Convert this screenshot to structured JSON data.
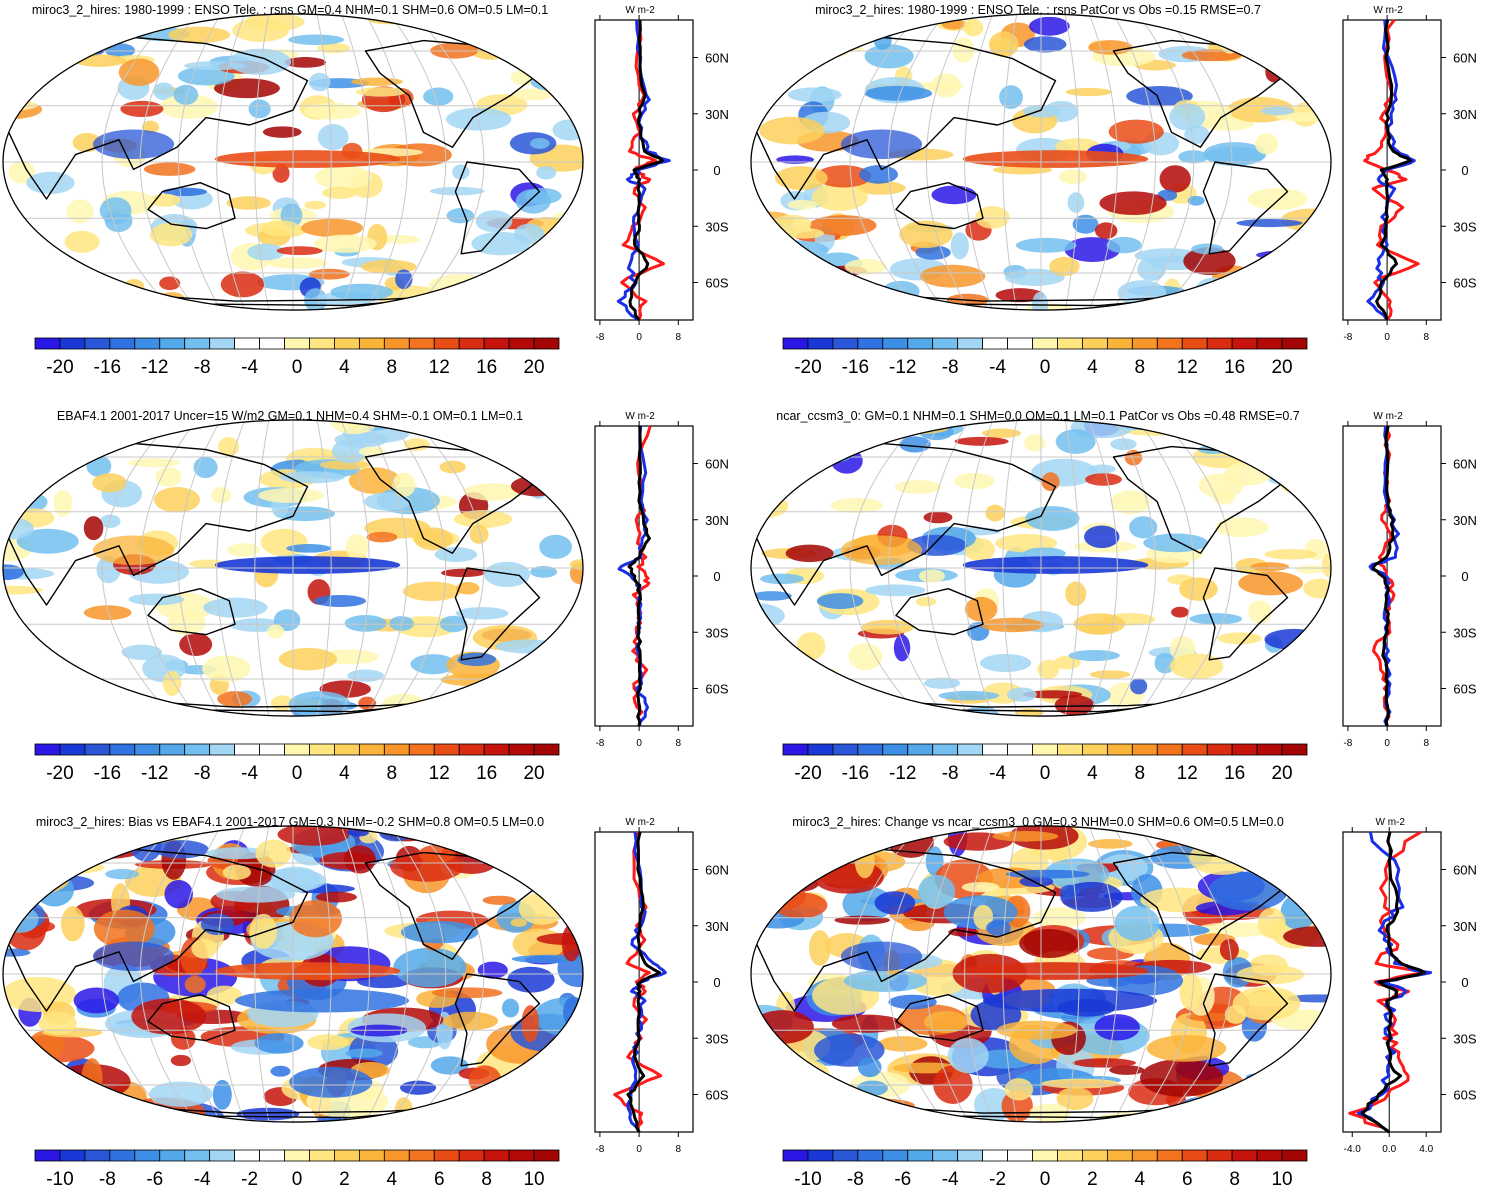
{
  "colors": {
    "diverging_21": [
      "#2a17e6",
      "#1a38d6",
      "#2a57d8",
      "#2f72e0",
      "#3d8fe6",
      "#53a8ea",
      "#73bff0",
      "#a2d6f4",
      "#ffffff",
      "#ffffff",
      "#fff7b0",
      "#ffe680",
      "#fdd05c",
      "#fbb43a",
      "#f8962a",
      "#f2721e",
      "#ea4c16",
      "#d92c10",
      "#c6130c",
      "#b50808",
      "#a30404"
    ],
    "profile_red": "#ff1a1a",
    "profile_blue": "#1a2ee6",
    "profile_black": "#000000",
    "graticule": "#c8c8c8"
  },
  "chart_data": [
    {
      "type": "heatmap",
      "title": "miroc3_2_hires: 1980-1999 : ENSO Tele. : rsns GM=0.4 NHM=0.1 SHM=0.6 OM=0.5 LM=0.1",
      "projection": "Robinson, centered 150E",
      "colorbar_ticks": [
        "-20",
        "-16",
        "-12",
        "-8",
        "-4",
        "0",
        "4",
        "8",
        "12",
        "16",
        "20"
      ],
      "lat_labels": [
        "60N",
        "30N",
        "0",
        "30S",
        "60S"
      ],
      "profile_xticks": [
        "-8",
        "0",
        "8"
      ],
      "profile_unit": "W m-2",
      "profile_xlim": [
        -9,
        11
      ],
      "profile_series": [
        {
          "name": "model",
          "color": "red",
          "lat": [
            80,
            60,
            40,
            30,
            20,
            10,
            5,
            0,
            -5,
            -10,
            -20,
            -30,
            -40,
            -50,
            -60,
            -70,
            -80
          ],
          "values": [
            0.5,
            -0.8,
            1,
            -0.8,
            0,
            -2,
            3,
            -1,
            2,
            -1,
            1,
            -1,
            -3,
            5,
            -4,
            1,
            0
          ]
        },
        {
          "name": "obs",
          "color": "blue",
          "lat": [
            80,
            60,
            40,
            30,
            20,
            10,
            5,
            0,
            -5,
            -10,
            -20,
            -30,
            -40,
            -50,
            -60,
            -70,
            -80
          ],
          "values": [
            -1,
            0,
            2,
            1,
            0,
            2,
            6,
            0,
            -2,
            1,
            0,
            -1,
            0,
            -2,
            -1,
            -4,
            0
          ]
        },
        {
          "name": "mean",
          "color": "black",
          "lat": [
            80,
            60,
            40,
            30,
            20,
            10,
            5,
            0,
            -5,
            -10,
            -20,
            -30,
            -40,
            -50,
            -60,
            -70,
            -80
          ],
          "values": [
            0,
            0,
            1,
            0,
            0,
            1,
            5,
            -1,
            0,
            0,
            0,
            0,
            -1,
            2,
            -1,
            -2,
            0
          ]
        }
      ]
    },
    {
      "type": "heatmap",
      "title": "miroc3_2_hires: 1980-1999 : ENSO Tele. : rsns PatCor vs Obs =0.15 RMSE=0.7",
      "projection": "Robinson, centered 150E",
      "colorbar_ticks": [
        "-20",
        "-16",
        "-12",
        "-8",
        "-4",
        "0",
        "4",
        "8",
        "12",
        "16",
        "20"
      ],
      "lat_labels": [
        "60N",
        "30N",
        "0",
        "30S",
        "60S"
      ],
      "profile_xticks": [
        "-8",
        "0",
        "8"
      ],
      "profile_unit": "W m-2",
      "profile_xlim": [
        -9,
        11
      ],
      "profile_series": [
        {
          "name": "model",
          "color": "red",
          "lat": [
            80,
            60,
            40,
            30,
            20,
            10,
            5,
            0,
            -5,
            -10,
            -20,
            -30,
            -40,
            -50,
            -60,
            -70,
            -80
          ],
          "values": [
            1,
            -1,
            1,
            -1,
            0,
            -2,
            -5,
            0,
            4,
            -3,
            3,
            -1,
            -2,
            6,
            -3,
            1,
            0
          ]
        },
        {
          "name": "obs",
          "color": "blue",
          "lat": [
            80,
            60,
            40,
            30,
            20,
            10,
            5,
            0,
            -5,
            -10,
            -20,
            -30,
            -40,
            -50,
            -60,
            -70,
            -80
          ],
          "values": [
            -1,
            0,
            2,
            1,
            0,
            2,
            6,
            0,
            -2,
            1,
            0,
            -1,
            0,
            -2,
            -1,
            -4,
            0
          ]
        },
        {
          "name": "mean",
          "color": "black",
          "lat": [
            80,
            60,
            40,
            30,
            20,
            10,
            5,
            0,
            -5,
            -10,
            -20,
            -30,
            -40,
            -50,
            -60,
            -70,
            -80
          ],
          "values": [
            0,
            0,
            1,
            0,
            0,
            1,
            5,
            -1,
            0,
            0,
            0,
            0,
            -1,
            2,
            -1,
            -2,
            0
          ]
        }
      ]
    },
    {
      "type": "heatmap",
      "title": "EBAF4.1 2001-2017 Uncer=15 W/m2 GM=0.1 NHM=0.4 SHM=-0.1 OM=0.1 LM=0.1",
      "projection": "Robinson, centered 150E",
      "colorbar_ticks": [
        "-20",
        "-16",
        "-12",
        "-8",
        "-4",
        "0",
        "4",
        "8",
        "12",
        "16",
        "20"
      ],
      "lat_labels": [
        "60N",
        "30N",
        "0",
        "30S",
        "60S"
      ],
      "profile_xticks": [
        "-8",
        "0",
        "8"
      ],
      "profile_unit": "W m-2",
      "profile_xlim": [
        -9,
        11
      ],
      "profile_series": [
        {
          "name": "model",
          "color": "red",
          "lat": [
            80,
            60,
            40,
            30,
            20,
            10,
            5,
            0,
            -5,
            -10,
            -20,
            -30,
            -40,
            -50,
            -60,
            -70,
            -80
          ],
          "values": [
            2,
            0,
            1,
            0,
            0,
            1,
            0,
            1,
            2,
            -1,
            0,
            0,
            -1,
            1,
            -1,
            0,
            0
          ]
        },
        {
          "name": "obs",
          "color": "blue",
          "lat": [
            80,
            60,
            40,
            30,
            20,
            10,
            5,
            0,
            -5,
            -10,
            -20,
            -30,
            -40,
            -50,
            -60,
            -70,
            -80
          ],
          "values": [
            0,
            1,
            0,
            2,
            1,
            0,
            -4,
            -2,
            0,
            0,
            0,
            0,
            0,
            0,
            0,
            2,
            0
          ]
        },
        {
          "name": "mean",
          "color": "black",
          "lat": [
            80,
            60,
            40,
            30,
            20,
            10,
            5,
            0,
            -5,
            -10,
            -20,
            -30,
            -40,
            -50,
            -60,
            -70,
            -80
          ],
          "values": [
            0,
            0,
            0,
            1,
            2,
            0,
            -2,
            -1,
            0,
            0,
            0,
            0,
            0,
            0,
            0,
            0,
            0
          ]
        }
      ]
    },
    {
      "type": "heatmap",
      "title": "ncar_ccsm3_0: GM=0.1 NHM=0.1 SHM=0.0 OM=0.1 LM=0.1 PatCor vs Obs =0.48 RMSE=0.7",
      "projection": "Robinson, centered 150E",
      "colorbar_ticks": [
        "-20",
        "-16",
        "-12",
        "-8",
        "-4",
        "0",
        "4",
        "8",
        "12",
        "16",
        "20"
      ],
      "lat_labels": [
        "60N",
        "30N",
        "0",
        "30S",
        "60S"
      ],
      "profile_xticks": [
        "-8",
        "0",
        "8"
      ],
      "profile_unit": "W m-2",
      "profile_xlim": [
        -9,
        11
      ],
      "profile_series": [
        {
          "name": "model",
          "color": "red",
          "lat": [
            80,
            60,
            40,
            30,
            20,
            10,
            5,
            0,
            -5,
            -10,
            -20,
            -30,
            -40,
            -50,
            -60,
            -70,
            -80
          ],
          "values": [
            0,
            0,
            0,
            -1,
            1,
            -2,
            -1,
            0,
            1,
            1,
            0,
            0,
            -3,
            -1,
            0,
            0,
            0
          ]
        },
        {
          "name": "obs",
          "color": "blue",
          "lat": [
            80,
            60,
            40,
            30,
            20,
            10,
            5,
            0,
            -5,
            -10,
            -20,
            -30,
            -40,
            -50,
            -60,
            -70,
            -80
          ],
          "values": [
            0,
            0,
            0,
            1,
            2,
            2,
            -4,
            0,
            0,
            0,
            0,
            0,
            0,
            0,
            0,
            0,
            0
          ]
        },
        {
          "name": "mean",
          "color": "black",
          "lat": [
            80,
            60,
            40,
            30,
            20,
            10,
            5,
            0,
            -5,
            -10,
            -20,
            -30,
            -40,
            -50,
            -60,
            -70,
            -80
          ],
          "values": [
            0,
            0,
            0,
            1,
            1,
            0,
            -3,
            -1,
            0,
            0,
            0,
            0,
            -1,
            0,
            0,
            0,
            0
          ]
        }
      ]
    },
    {
      "type": "heatmap",
      "title": "miroc3_2_hires: Bias vs EBAF4.1 2001-2017 GM=0.3 NHM=-0.2 SHM=0.8 OM=0.5 LM=0.0",
      "projection": "Robinson, centered 150E",
      "colorbar_ticks": [
        "-10",
        "-8",
        "-6",
        "-4",
        "-2",
        "0",
        "2",
        "4",
        "6",
        "8",
        "10"
      ],
      "lat_labels": [
        "60N",
        "30N",
        "0",
        "30S",
        "60S"
      ],
      "profile_xticks": [
        "-8",
        "0",
        "8"
      ],
      "profile_unit": "W m-2",
      "profile_xlim": [
        -9,
        11
      ],
      "profile_series": [
        {
          "name": "model",
          "color": "red",
          "lat": [
            80,
            60,
            40,
            30,
            20,
            10,
            5,
            0,
            -5,
            -10,
            -20,
            -30,
            -40,
            -50,
            -60,
            -70,
            -80
          ],
          "values": [
            0,
            -1,
            1,
            0,
            1,
            -3,
            2,
            0,
            1,
            -1,
            1,
            0,
            -2,
            4,
            -5,
            0,
            0
          ]
        },
        {
          "name": "obs",
          "color": "blue",
          "lat": [
            80,
            60,
            40,
            30,
            20,
            10,
            5,
            0,
            -5,
            -10,
            -20,
            -30,
            -40,
            -50,
            -60,
            -70,
            -80
          ],
          "values": [
            -1,
            0,
            1,
            0,
            -1,
            3,
            5,
            0,
            -1,
            1,
            0,
            0,
            -1,
            -1,
            -2,
            -2,
            0
          ]
        },
        {
          "name": "mean",
          "color": "black",
          "lat": [
            80,
            60,
            40,
            30,
            20,
            10,
            5,
            0,
            -5,
            -10,
            -20,
            -30,
            -40,
            -50,
            -60,
            -70,
            -80
          ],
          "values": [
            0,
            0,
            1,
            0,
            0,
            1,
            4,
            0,
            0,
            0,
            0,
            0,
            -1,
            1,
            -2,
            -1,
            0
          ]
        }
      ]
    },
    {
      "type": "heatmap",
      "title": "miroc3_2_hires: Change vs ncar_ccsm3_0 GM=0.3 NHM=0.0 SHM=0.6 OM=0.5 LM=0.0",
      "projection": "Robinson, centered 150E",
      "colorbar_ticks": [
        "-10",
        "-8",
        "-6",
        "-4",
        "-2",
        "0",
        "2",
        "4",
        "6",
        "8",
        "10"
      ],
      "lat_labels": [
        "60N",
        "30N",
        "0",
        "30S",
        "60S"
      ],
      "profile_xticks": [
        "-4.0",
        "0.0",
        "4.0"
      ],
      "profile_unit": "W m-2",
      "profile_xlim": [
        -5,
        5.6
      ],
      "profile_series": [
        {
          "name": "model",
          "color": "red",
          "lat": [
            80,
            60,
            40,
            30,
            20,
            10,
            5,
            0,
            -5,
            -10,
            -20,
            -30,
            -40,
            -50,
            -60,
            -70,
            -80
          ],
          "values": [
            3,
            -1,
            0,
            -1,
            1,
            -2,
            4,
            -2,
            2,
            -1,
            1,
            0,
            1,
            2,
            0,
            -4,
            0
          ]
        },
        {
          "name": "obs",
          "color": "blue",
          "lat": [
            80,
            60,
            40,
            30,
            20,
            10,
            5,
            0,
            -5,
            -10,
            -20,
            -30,
            -40,
            -50,
            -60,
            -70,
            -80
          ],
          "values": [
            -2,
            1,
            1,
            -1,
            0,
            1,
            4,
            -1,
            2,
            0,
            0,
            0,
            0,
            0,
            -1,
            -3,
            0
          ]
        },
        {
          "name": "mean",
          "color": "black",
          "lat": [
            80,
            60,
            40,
            30,
            20,
            10,
            5,
            0,
            -5,
            -10,
            -20,
            -30,
            -40,
            -50,
            -60,
            -70,
            -80
          ],
          "values": [
            0,
            0,
            1,
            0,
            0,
            1,
            4,
            -1,
            1,
            0,
            0,
            0,
            0,
            1,
            -1,
            -3,
            0
          ]
        }
      ]
    }
  ]
}
